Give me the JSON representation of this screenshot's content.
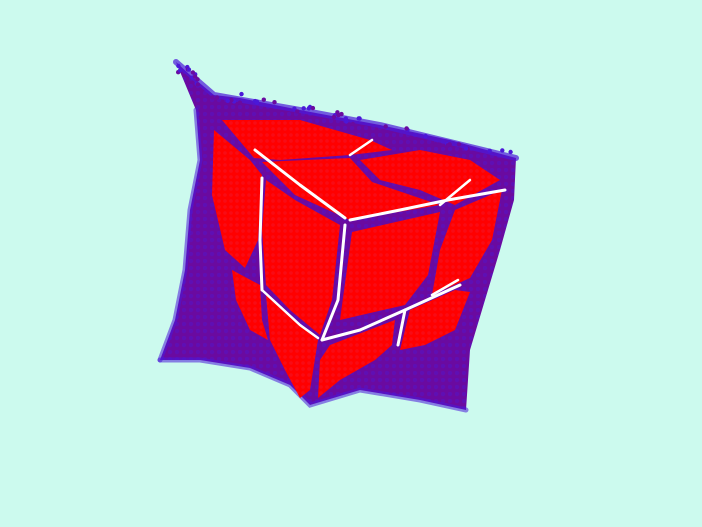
{
  "scene": {
    "background_color": "#ccfaee",
    "outer_color": "#6a0aa0",
    "outer_edge_color": "#4b18d8",
    "face_color": "#ff0000",
    "face_edge_color": "#ee1e3c",
    "gap_color": "#ffffff",
    "object": "point-cloud-cube"
  }
}
